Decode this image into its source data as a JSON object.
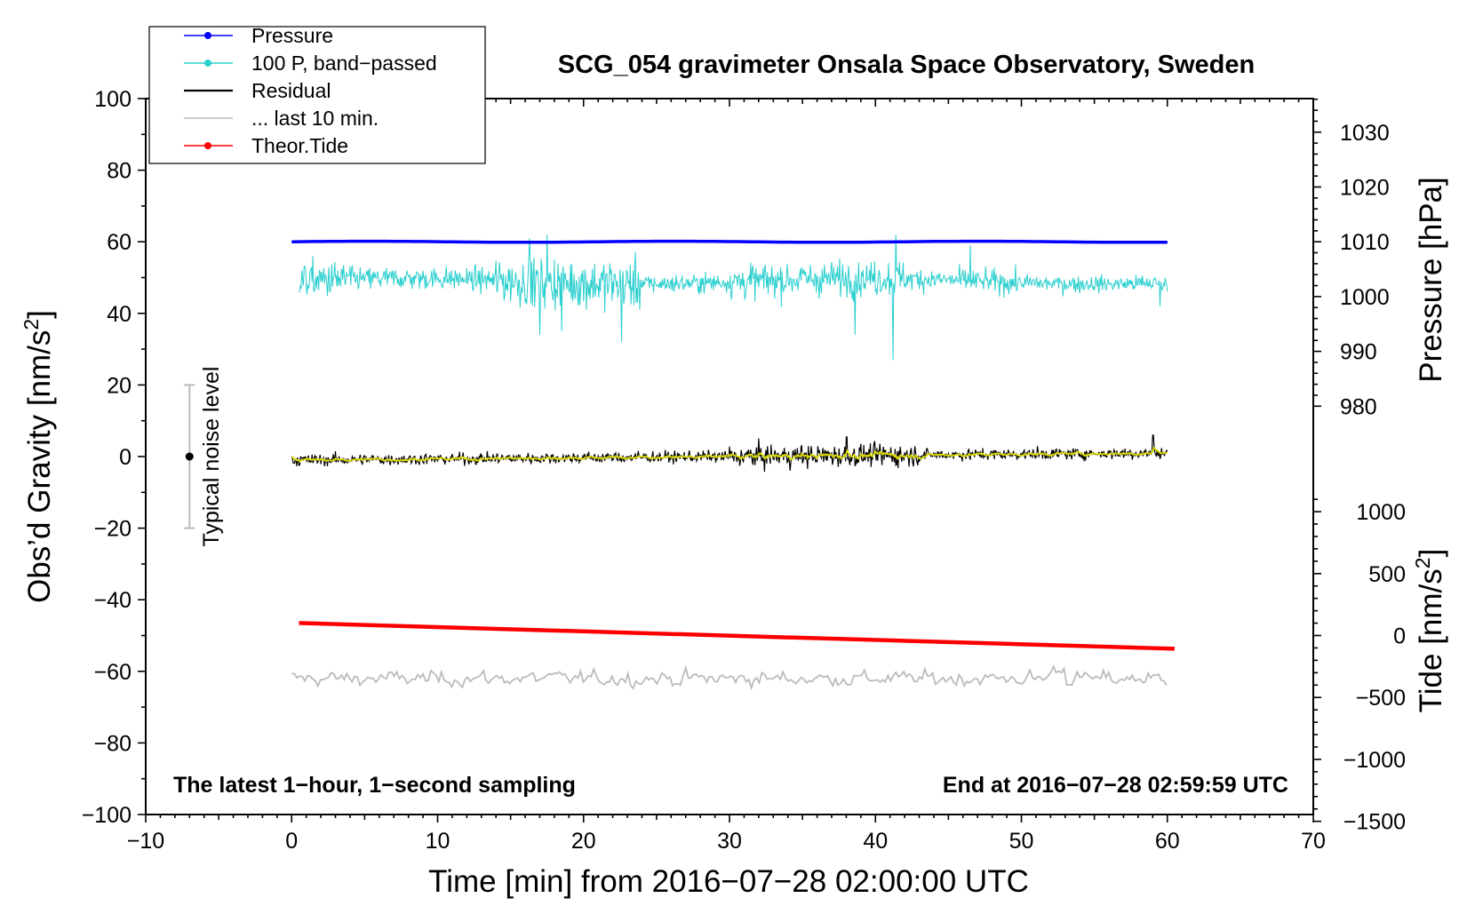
{
  "chart_data": {
    "type": "line",
    "title": "SCG_054 gravimeter Onsala Space Observatory, Sweden",
    "xlabel": "Time [min] from 2016−07−28 02:00:00 UTC",
    "ylabel": "Obs’d Gravity [nm/s",
    "ylabel_sup": "2",
    "ylabel_end": "]",
    "xlim": [
      -10,
      70
    ],
    "ylim": [
      -100,
      100
    ],
    "x_ticks": [
      "−10",
      "0",
      "10",
      "20",
      "30",
      "40",
      "50",
      "60",
      "70"
    ],
    "y_ticks": [
      "−100",
      "−80",
      "−60",
      "−40",
      "−20",
      "0",
      "20",
      "40",
      "60",
      "80",
      "100"
    ],
    "pressure_axis": {
      "label": "Pressure [hPa]",
      "ticks": [
        "980",
        "990",
        "1000",
        "1010",
        "1020",
        "1030"
      ]
    },
    "tide_axis": {
      "label": "Tide [nm/s",
      "label_sup": "2",
      "label_end": "]",
      "ticks": [
        "−1500",
        "−1000",
        "−500",
        "0",
        "500",
        "1000"
      ]
    },
    "legend": {
      "position": "top-left",
      "entries": [
        {
          "name": "Pressure",
          "color": "#0000ff",
          "marker": true
        },
        {
          "name": "100 P, band−passed",
          "color": "#2ccfcf",
          "marker": true
        },
        {
          "name": "Residual",
          "color": "#000000",
          "marker": false
        },
        {
          "name": "... last 10 min.",
          "color": "#bbbbbb",
          "marker": false
        },
        {
          "name": "Theor.Tide",
          "color": "#ff0000",
          "marker": true
        }
      ]
    },
    "noise_label": "Typical noise level",
    "noise_bar": {
      "x": -7,
      "center": 0,
      "range": [
        -20,
        20
      ]
    },
    "annotation_left": "The latest 1−hour, 1−second sampling",
    "annotation_right": "End at 2016−07−28 02:59:59 UTC",
    "series": [
      {
        "name": "Pressure",
        "color": "#0000ff",
        "x_range": [
          0,
          60
        ],
        "approx_level": 60
      },
      {
        "name": "100 P, band−passed",
        "color": "#2ccfcf",
        "x_range": [
          0.5,
          60
        ],
        "approx_mean": 49,
        "approx_range": [
          27,
          63
        ]
      },
      {
        "name": "Residual",
        "color": "#000000",
        "x_range": [
          0,
          60
        ],
        "approx_start": -1,
        "approx_end": 1,
        "approx_range": [
          -5,
          6
        ]
      },
      {
        "name": "... last 10 min.",
        "color": "#bbbbbb",
        "x_range": [
          0,
          60
        ],
        "approx_mean": -62,
        "approx_range": [
          -66,
          -57
        ]
      },
      {
        "name": "Theor.Tide",
        "color": "#ff0000",
        "x": [
          0.5,
          60.5
        ],
        "y": [
          -46.5,
          -53.7
        ]
      }
    ],
    "yellow_smoothed_color": "#d8d800"
  }
}
